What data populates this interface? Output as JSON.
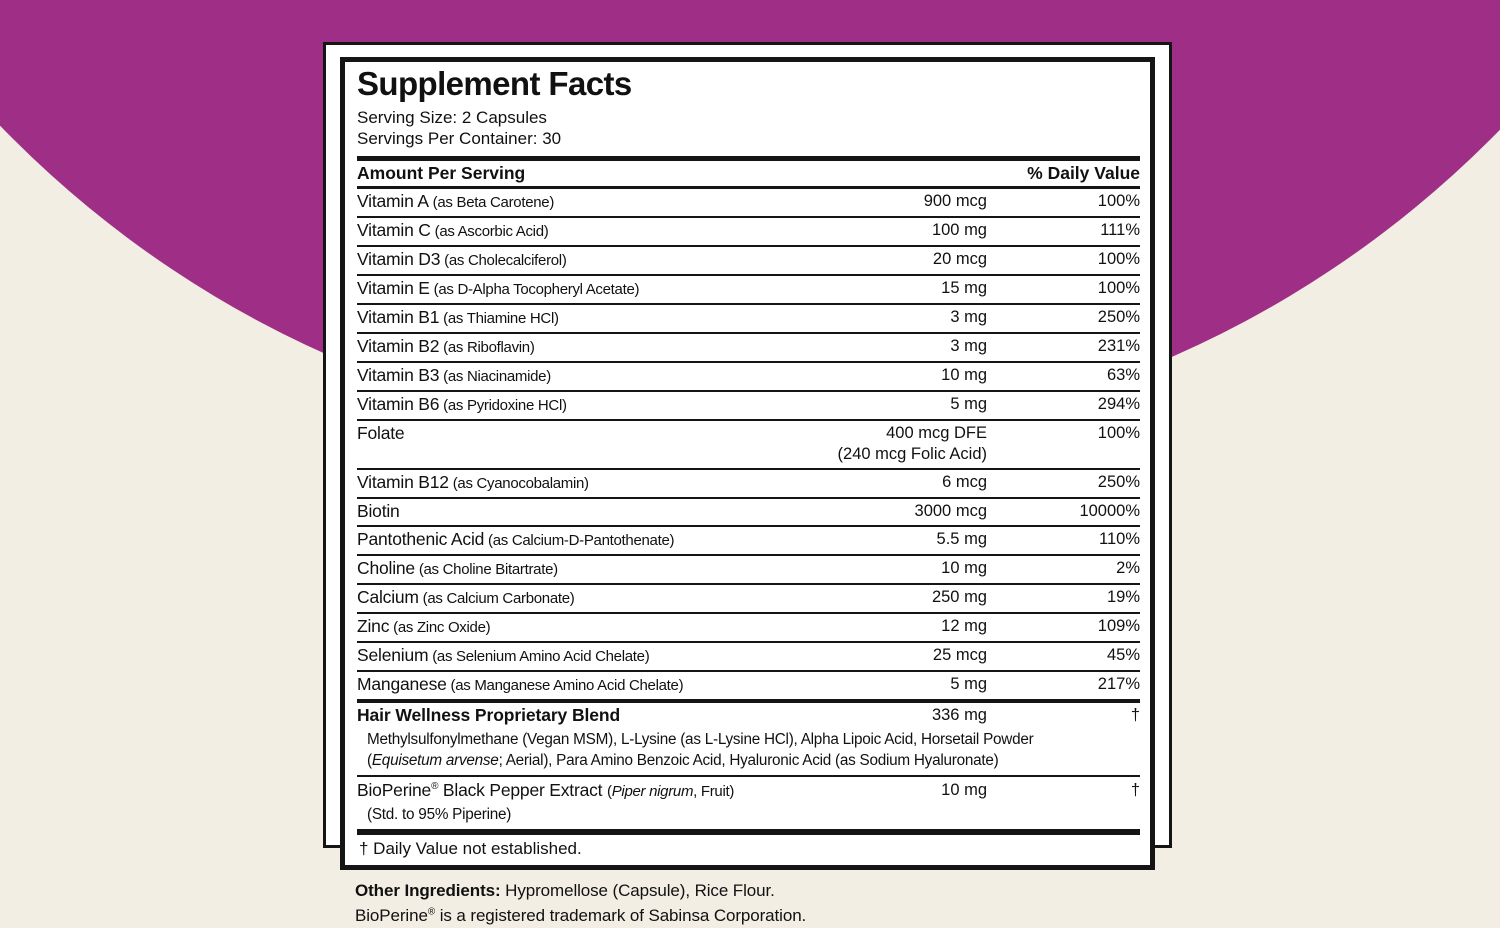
{
  "background": {
    "page_color": "#f3eee4",
    "circle_color": "#9f2f86"
  },
  "label": {
    "title": "Supplement Facts",
    "serving_size": "Serving Size: 2 Capsules",
    "servings_per_container": "Servings Per Container: 30",
    "header": {
      "left": "Amount Per Serving",
      "right": "% Daily Value"
    },
    "rows": [
      {
        "name": "Vitamin A",
        "detail": "(as Beta Carotene)",
        "amount": "900 mcg",
        "dv": "100%"
      },
      {
        "name": "Vitamin C",
        "detail": "(as Ascorbic Acid)",
        "amount": "100 mg",
        "dv": "111%"
      },
      {
        "name": "Vitamin D3",
        "detail": "(as Cholecalciferol)",
        "amount": "20 mcg",
        "dv": "100%"
      },
      {
        "name": "Vitamin E",
        "detail": "(as D-Alpha Tocopheryl Acetate)",
        "amount": "15 mg",
        "dv": "100%"
      },
      {
        "name": "Vitamin B1",
        "detail": "(as Thiamine HCl)",
        "amount": "3 mg",
        "dv": "250%"
      },
      {
        "name": "Vitamin B2",
        "detail": "(as Riboflavin)",
        "amount": "3 mg",
        "dv": "231%"
      },
      {
        "name": "Vitamin B3",
        "detail": "(as Niacinamide)",
        "amount": "10 mg",
        "dv": "63%"
      },
      {
        "name": "Vitamin B6",
        "detail": "(as Pyridoxine HCl)",
        "amount": "5 mg",
        "dv": "294%"
      },
      {
        "name": "Folate",
        "detail": "",
        "amount": "400 mcg DFE",
        "amount2": "(240 mcg Folic Acid)",
        "dv": "100%"
      },
      {
        "name": "Vitamin B12",
        "detail": "(as Cyanocobalamin)",
        "amount": "6 mcg",
        "dv": "250%"
      },
      {
        "name": "Biotin",
        "detail": "",
        "amount": "3000 mcg",
        "dv": "10000%"
      },
      {
        "name": "Pantothenic Acid",
        "detail": "(as Calcium-D-Pantothenate)",
        "amount": "5.5 mg",
        "dv": "110%"
      },
      {
        "name": "Choline",
        "detail": "(as Choline Bitartrate)",
        "amount": "10 mg",
        "dv": "2%"
      },
      {
        "name": "Calcium",
        "detail": "(as Calcium Carbonate)",
        "amount": "250 mg",
        "dv": "19%"
      },
      {
        "name": "Zinc",
        "detail": "(as Zinc Oxide)",
        "amount": "12 mg",
        "dv": "109%"
      },
      {
        "name": "Selenium",
        "detail": "(as Selenium Amino Acid Chelate)",
        "amount": "25 mcg",
        "dv": "45%"
      },
      {
        "name": "Manganese",
        "detail": "(as Manganese Amino Acid Chelate)",
        "amount": "5 mg",
        "dv": "217%"
      }
    ],
    "blend": {
      "name": "Hair Wellness Proprietary Blend",
      "amount": "336 mg",
      "dv": "†",
      "description_line1": [
        {
          "t": "Methylsulfonylmethane (Vegan MSM), L-Lysine (as L-Lysine HCl), Alpha Lipoic Acid, Horsetail Powder"
        }
      ],
      "description_line2": [
        {
          "t": "("
        },
        {
          "t": "Equisetum arvense",
          "i": true
        },
        {
          "t": "; Aerial), Para Amino Benzoic Acid, Hyaluronic Acid (as Sodium Hyaluronate)"
        }
      ]
    },
    "bioperine": {
      "name_segments": [
        {
          "t": "BioPerine"
        },
        {
          "t": "®",
          "sup": true
        },
        {
          "t": " Black Pepper Extract "
        },
        {
          "t": "(",
          "d": true
        },
        {
          "t": "Piper nigrum",
          "d": true,
          "i": true
        },
        {
          "t": ", Fruit)",
          "d": true
        }
      ],
      "amount": "10 mg",
      "dv": "†",
      "sub": "(Std. to 95% Piperine)"
    },
    "footnote": "† Daily Value not established.",
    "other_ingredients_segments": [
      {
        "t": "Other Ingredients:",
        "b": true
      },
      {
        "t": " Hypromellose (Capsule), Rice Flour."
      }
    ],
    "trademark_segments": [
      {
        "t": "BioPerine"
      },
      {
        "t": "®",
        "sup": true
      },
      {
        "t": " is a registered trademark of Sabinsa Corporation."
      }
    ]
  }
}
